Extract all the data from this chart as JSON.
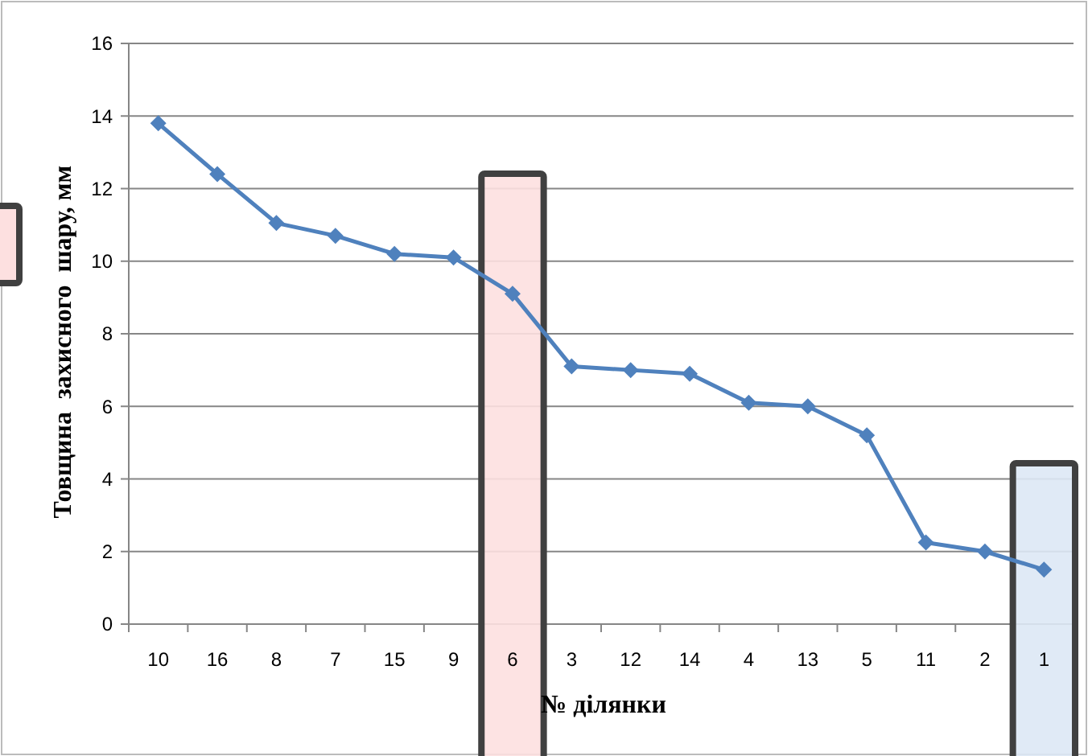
{
  "chart_data": {
    "type": "line",
    "xlabel": "№ ділянки",
    "ylabel": "Товщина  захисного  шару, мм",
    "categories": [
      "10",
      "16",
      "8",
      "7",
      "15",
      "9",
      "6",
      "3",
      "12",
      "14",
      "4",
      "13",
      "5",
      "11",
      "2",
      "1"
    ],
    "series": [
      {
        "color": "#4f81bd",
        "values": [
          13.8,
          12.4,
          11.05,
          10.7,
          10.2,
          10.1,
          9.1,
          7.1,
          7.0,
          6.9,
          6.1,
          6.0,
          5.2,
          2.25,
          2.0,
          1.5
        ]
      }
    ],
    "ylim": [
      0,
      16
    ],
    "yticks": [
      0,
      2,
      4,
      6,
      8,
      10,
      12,
      14,
      16
    ],
    "grid": "y",
    "marker": "diamond",
    "bands": [
      {
        "axis": "x",
        "from": "6",
        "to": "6",
        "color": "#fde0e0"
      },
      {
        "axis": "x",
        "from": "1",
        "to": "1",
        "color": "#dde8f5"
      }
    ]
  }
}
